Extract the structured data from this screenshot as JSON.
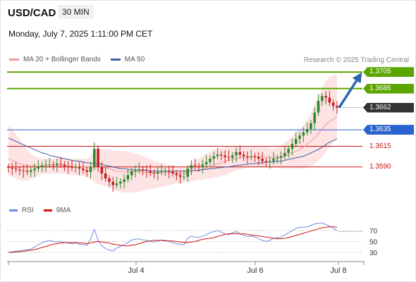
{
  "header": {
    "symbol": "USD/CAD",
    "timeframe": "30 MIN",
    "datetime": "Monday, July 7, 2025 1:11:00 PM CET"
  },
  "legend": {
    "ma20": "MA 20 + Bollinger Bands",
    "ma50": "MA 50",
    "credit": "Research © 2025 Trading Central",
    "rsi": "RSI",
    "rsi_ma": "9MA"
  },
  "colors": {
    "green": "#5aa500",
    "blue": "#2a62cf",
    "red": "#cc1111",
    "dark": "#333333",
    "band": "#fde3e3",
    "ma20": "#f29a9a",
    "ma50": "#3d5fa8",
    "arrow": "#2c65ad",
    "rsi": "#6a8fdc",
    "rsi_ma": "#d31010"
  },
  "chart_data": [
    {
      "type": "candlestick",
      "ylim": [
        1.3536,
        1.3724
      ],
      "x_labels": [
        "Jul 4",
        "Jul 6",
        "Jul 8"
      ],
      "levels": [
        {
          "label": "1.3705",
          "value": 1.3705,
          "style": "box",
          "color": "green"
        },
        {
          "label": "1.3685",
          "value": 1.3685,
          "style": "box",
          "color": "green"
        },
        {
          "label": "1.3662",
          "value": 1.3662,
          "style": "box",
          "color": "dark"
        },
        {
          "label": "1.3635",
          "value": 1.3635,
          "style": "box",
          "color": "blue"
        },
        {
          "label": "1.3615",
          "value": 1.3615,
          "style": "plain",
          "color": "red"
        },
        {
          "label": "1.3590",
          "value": 1.359,
          "style": "plain",
          "color": "red"
        }
      ],
      "close": [
        1.3589,
        1.3588,
        1.3587,
        1.3586,
        1.3585,
        1.3584,
        1.3586,
        1.3588,
        1.359,
        1.3592,
        1.3593,
        1.3593,
        1.3592,
        1.3594,
        1.3593,
        1.3591,
        1.359,
        1.3589,
        1.359,
        1.3588,
        1.3586,
        1.3584,
        1.359,
        1.3612,
        1.359,
        1.3582,
        1.3576,
        1.3572,
        1.3568,
        1.357,
        1.3572,
        1.3575,
        1.358,
        1.3585,
        1.3586,
        1.3587,
        1.3586,
        1.3585,
        1.3583,
        1.3582,
        1.3584,
        1.3585,
        1.3585,
        1.3584,
        1.3582,
        1.358,
        1.3578,
        1.3578,
        1.3588,
        1.3592,
        1.3591,
        1.359,
        1.3593,
        1.3596,
        1.36,
        1.3603,
        1.3605,
        1.3604,
        1.3602,
        1.3601,
        1.3604,
        1.3608,
        1.3605,
        1.3603,
        1.3602,
        1.3603,
        1.3602,
        1.36,
        1.3597,
        1.3596,
        1.3597,
        1.36,
        1.3601,
        1.3603,
        1.3607,
        1.3612,
        1.3618,
        1.3624,
        1.3628,
        1.3632,
        1.3636,
        1.3643,
        1.3656,
        1.367,
        1.3676,
        1.3674,
        1.3668,
        1.3664,
        1.3662
      ],
      "ma20": [
        1.36,
        1.3598,
        1.3596,
        1.3594,
        1.3593,
        1.3592,
        1.3592,
        1.3591,
        1.3591,
        1.3591,
        1.3591,
        1.3591,
        1.3591,
        1.3591,
        1.3591,
        1.3591,
        1.3591,
        1.3591,
        1.359,
        1.359,
        1.359,
        1.359,
        1.359,
        1.3591,
        1.3591,
        1.359,
        1.3589,
        1.3588,
        1.3586,
        1.3585,
        1.3585,
        1.3584,
        1.3584,
        1.3584,
        1.3584,
        1.3584,
        1.3584,
        1.3583,
        1.3583,
        1.3583,
        1.3583,
        1.3583,
        1.3583,
        1.3583,
        1.3583,
        1.3583,
        1.3582,
        1.3582,
        1.3583,
        1.3584,
        1.3585,
        1.3586,
        1.3587,
        1.3589,
        1.359,
        1.3592,
        1.3594,
        1.3595,
        1.3597,
        1.3598,
        1.3599,
        1.36,
        1.3601,
        1.3601,
        1.3601,
        1.3602,
        1.3602,
        1.3602,
        1.3602,
        1.3602,
        1.3601,
        1.3601,
        1.3602,
        1.3602,
        1.3603,
        1.3605,
        1.3607,
        1.3609,
        1.3611,
        1.3614,
        1.3617,
        1.3621,
        1.3625,
        1.363,
        1.3636,
        1.3641,
        1.3645,
        1.3648,
        1.3651
      ],
      "bb_upper": [
        1.364,
        1.3636,
        1.363,
        1.3624,
        1.3617,
        1.3611,
        1.3606,
        1.3603,
        1.3601,
        1.36,
        1.36,
        1.36,
        1.36,
        1.3601,
        1.3601,
        1.3601,
        1.36,
        1.36,
        1.36,
        1.36,
        1.36,
        1.36,
        1.3603,
        1.3612,
        1.3613,
        1.3612,
        1.3611,
        1.3611,
        1.361,
        1.361,
        1.3609,
        1.3609,
        1.3608,
        1.3607,
        1.3606,
        1.3605,
        1.3603,
        1.3601,
        1.3599,
        1.3597,
        1.3596,
        1.3595,
        1.3594,
        1.3593,
        1.3592,
        1.3591,
        1.359,
        1.3589,
        1.3592,
        1.3595,
        1.3597,
        1.36,
        1.3603,
        1.3606,
        1.3608,
        1.3611,
        1.3613,
        1.3613,
        1.3614,
        1.3614,
        1.3614,
        1.3614,
        1.3614,
        1.3614,
        1.3614,
        1.3614,
        1.3614,
        1.3614,
        1.3614,
        1.3614,
        1.3613,
        1.3613,
        1.3614,
        1.3616,
        1.3619,
        1.3623,
        1.3627,
        1.3632,
        1.3636,
        1.3641,
        1.3647,
        1.3655,
        1.3665,
        1.3676,
        1.3686,
        1.3694,
        1.3699,
        1.3701,
        1.3702
      ],
      "bb_lower": [
        1.358,
        1.3578,
        1.3576,
        1.3574,
        1.3574,
        1.3573,
        1.3575,
        1.3577,
        1.3579,
        1.3581,
        1.3582,
        1.3582,
        1.3582,
        1.3582,
        1.3582,
        1.3582,
        1.3581,
        1.358,
        1.358,
        1.358,
        1.3579,
        1.3578,
        1.3576,
        1.3571,
        1.3569,
        1.3568,
        1.3567,
        1.3565,
        1.3563,
        1.3561,
        1.356,
        1.3559,
        1.3559,
        1.3559,
        1.3559,
        1.356,
        1.3561,
        1.3562,
        1.3563,
        1.3564,
        1.3565,
        1.3566,
        1.3567,
        1.3568,
        1.3569,
        1.357,
        1.357,
        1.3571,
        1.3572,
        1.3573,
        1.3573,
        1.3574,
        1.3575,
        1.3576,
        1.3576,
        1.3577,
        1.3578,
        1.3579,
        1.358,
        1.3582,
        1.3584,
        1.3586,
        1.3587,
        1.3588,
        1.3589,
        1.359,
        1.359,
        1.359,
        1.359,
        1.359,
        1.3589,
        1.3589,
        1.3589,
        1.3588,
        1.3588,
        1.3588,
        1.3588,
        1.3588,
        1.3588,
        1.3588,
        1.3589,
        1.3591,
        1.3594,
        1.3598,
        1.3602,
        1.3608,
        1.3614,
        1.362,
        1.3626
      ],
      "ma50": [
        1.3625,
        1.3623,
        1.3621,
        1.3619,
        1.3617,
        1.3615,
        1.3613,
        1.3611,
        1.3609,
        1.3607,
        1.3606,
        1.3604,
        1.3603,
        1.3602,
        1.3601,
        1.36,
        1.3599,
        1.3598,
        1.3597,
        1.3597,
        1.3596,
        1.3595,
        1.3595,
        1.3594,
        1.3594,
        1.3593,
        1.3592,
        1.3591,
        1.359,
        1.3589,
        1.3588,
        1.3588,
        1.3587,
        1.3587,
        1.3586,
        1.3586,
        1.3586,
        1.3586,
        1.3585,
        1.3585,
        1.3585,
        1.3585,
        1.3585,
        1.3585,
        1.3585,
        1.3585,
        1.3585,
        1.3585,
        1.3585,
        1.3586,
        1.3586,
        1.3586,
        1.3587,
        1.3587,
        1.3588,
        1.3588,
        1.3589,
        1.3589,
        1.359,
        1.359,
        1.3591,
        1.3592,
        1.3592,
        1.3593,
        1.3593,
        1.3594,
        1.3594,
        1.3595,
        1.3595,
        1.3596,
        1.3596,
        1.3596,
        1.3597,
        1.3597,
        1.3598,
        1.3599,
        1.36,
        1.3601,
        1.3602,
        1.3603,
        1.3605,
        1.3607,
        1.3609,
        1.3611,
        1.3614,
        1.3617,
        1.362,
        1.3622,
        1.3624
      ],
      "projection": {
        "from": 1.3662,
        "to": 1.3705
      }
    },
    {
      "type": "line",
      "title": "RSI",
      "ylim": [
        20,
        85
      ],
      "yticks": [
        "70",
        "50",
        "30"
      ],
      "series": [
        {
          "name": "RSI",
          "values": [
            30,
            31,
            32,
            33,
            34,
            35,
            36,
            40,
            44,
            48,
            50,
            52,
            50,
            49,
            50,
            48,
            47,
            46,
            47,
            45,
            44,
            43,
            55,
            72,
            52,
            42,
            37,
            34,
            33,
            38,
            41,
            44,
            48,
            53,
            54,
            55,
            53,
            52,
            50,
            49,
            51,
            52,
            52,
            50,
            48,
            46,
            44,
            44,
            56,
            60,
            58,
            57,
            60,
            62,
            66,
            68,
            70,
            67,
            64,
            62,
            66,
            68,
            64,
            61,
            59,
            60,
            58,
            55,
            52,
            50,
            52,
            56,
            57,
            58,
            62,
            66,
            70,
            74,
            76,
            76,
            77,
            79,
            82,
            83,
            84,
            81,
            78,
            74,
            70
          ]
        },
        {
          "name": "9MA",
          "values": [
            30,
            30,
            31,
            31,
            32,
            33,
            34,
            35,
            37,
            39,
            41,
            43,
            45,
            46,
            47,
            48,
            48,
            48,
            48,
            47,
            47,
            46,
            47,
            49,
            50,
            49,
            48,
            47,
            45,
            44,
            43,
            42,
            42,
            43,
            44,
            46,
            48,
            50,
            51,
            52,
            52,
            52,
            51,
            51,
            51,
            50,
            49,
            48,
            48,
            49,
            50,
            52,
            54,
            55,
            56,
            57,
            59,
            61,
            63,
            64,
            64,
            64,
            64,
            64,
            63,
            62,
            61,
            60,
            59,
            58,
            57,
            56,
            55,
            55,
            56,
            57,
            59,
            61,
            63,
            65,
            67,
            69,
            71,
            73,
            75,
            76,
            77,
            77,
            76
          ]
        }
      ]
    }
  ]
}
